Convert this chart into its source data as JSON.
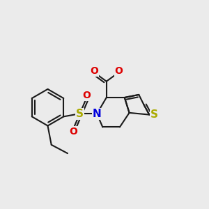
{
  "bg": "#ebebeb",
  "bc": "#1a1a1a",
  "bw": 1.5,
  "colors": {
    "S": "#aaaa00",
    "N": "#0000dd",
    "O": "#dd0000"
  },
  "fs": 9.5,
  "figsize": [
    3.0,
    3.0
  ],
  "dpi": 100,
  "xlim": [
    -2.8,
    2.8
  ],
  "ylim": [
    -2.0,
    2.0
  ]
}
